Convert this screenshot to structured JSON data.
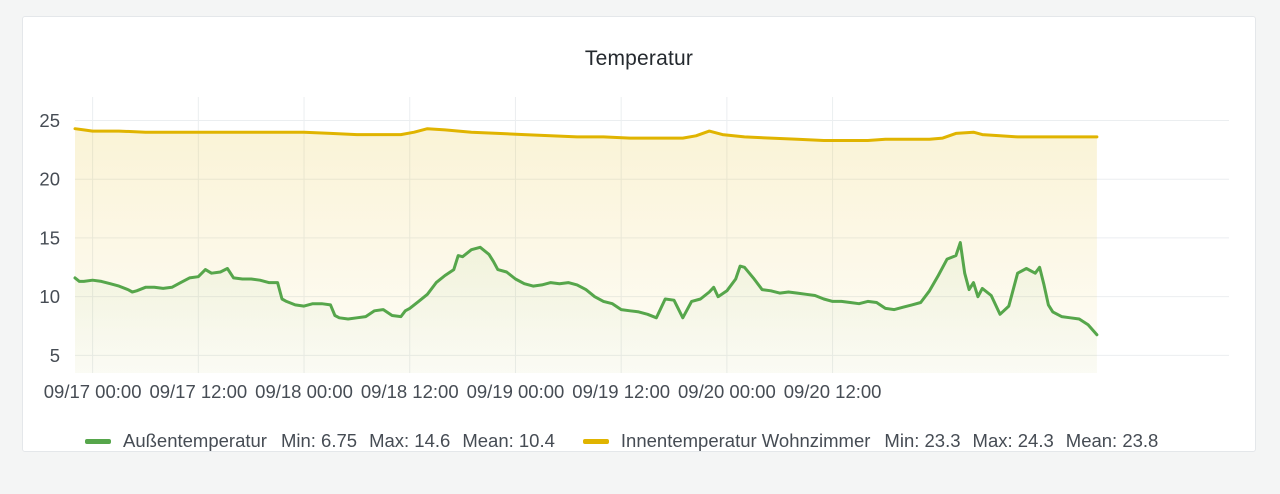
{
  "panel": {
    "title": "Temperatur"
  },
  "chart_data": {
    "type": "line",
    "title": "Temperatur",
    "xlabel": "",
    "ylabel": "",
    "x_unit": "hours since 09/17 00:00",
    "xlim": [
      -2,
      129
    ],
    "ylim": [
      3.5,
      27
    ],
    "x_ticks": [
      {
        "x": 0,
        "label": "09/17 00:00"
      },
      {
        "x": 12,
        "label": "09/17 12:00"
      },
      {
        "x": 24,
        "label": "09/18 00:00"
      },
      {
        "x": 36,
        "label": "09/18 12:00"
      },
      {
        "x": 48,
        "label": "09/19 00:00"
      },
      {
        "x": 60,
        "label": "09/19 12:00"
      },
      {
        "x": 72,
        "label": "09/20 00:00"
      },
      {
        "x": 84,
        "label": "09/20 12:00"
      }
    ],
    "y_ticks": [
      5,
      10,
      15,
      20,
      25
    ],
    "grid": true,
    "legend_position": "bottom",
    "series": [
      {
        "name": "Außentemperatur",
        "color": "#56a64b",
        "min": "6.75",
        "max": "14.6",
        "mean": "10.4",
        "points": [
          [
            -2,
            11.6
          ],
          [
            -1.5,
            11.3
          ],
          [
            -1,
            11.3
          ],
          [
            0,
            11.4
          ],
          [
            1,
            11.3
          ],
          [
            2,
            11.1
          ],
          [
            3,
            10.9
          ],
          [
            4,
            10.6
          ],
          [
            4.5,
            10.4
          ],
          [
            5,
            10.5
          ],
          [
            6,
            10.8
          ],
          [
            7,
            10.8
          ],
          [
            8,
            10.7
          ],
          [
            9,
            10.8
          ],
          [
            10,
            11.2
          ],
          [
            11,
            11.6
          ],
          [
            12,
            11.7
          ],
          [
            12.8,
            12.3
          ],
          [
            13.5,
            12.0
          ],
          [
            14.5,
            12.1
          ],
          [
            15.3,
            12.4
          ],
          [
            16,
            11.6
          ],
          [
            17,
            11.5
          ],
          [
            18,
            11.5
          ],
          [
            19,
            11.4
          ],
          [
            20,
            11.2
          ],
          [
            21,
            11.2
          ],
          [
            21.5,
            9.8
          ],
          [
            22,
            9.6
          ],
          [
            23,
            9.3
          ],
          [
            24,
            9.2
          ],
          [
            25,
            9.4
          ],
          [
            26,
            9.4
          ],
          [
            27,
            9.3
          ],
          [
            27.5,
            8.4
          ],
          [
            28,
            8.2
          ],
          [
            29,
            8.1
          ],
          [
            30,
            8.2
          ],
          [
            31,
            8.3
          ],
          [
            32,
            8.8
          ],
          [
            33,
            8.9
          ],
          [
            34,
            8.4
          ],
          [
            35,
            8.3
          ],
          [
            35.5,
            8.8
          ],
          [
            36,
            9.0
          ],
          [
            37,
            9.6
          ],
          [
            38,
            10.2
          ],
          [
            39,
            11.2
          ],
          [
            40,
            11.8
          ],
          [
            41,
            12.3
          ],
          [
            41.5,
            13.5
          ],
          [
            42,
            13.4
          ],
          [
            43,
            14.0
          ],
          [
            44,
            14.2
          ],
          [
            45,
            13.6
          ],
          [
            45.5,
            13.0
          ],
          [
            46,
            12.3
          ],
          [
            47,
            12.1
          ],
          [
            48,
            11.5
          ],
          [
            49,
            11.1
          ],
          [
            50,
            10.9
          ],
          [
            51,
            11.0
          ],
          [
            52,
            11.2
          ],
          [
            53,
            11.1
          ],
          [
            54,
            11.2
          ],
          [
            55,
            11.0
          ],
          [
            56,
            10.6
          ],
          [
            57,
            10.0
          ],
          [
            58,
            9.6
          ],
          [
            59,
            9.4
          ],
          [
            60,
            8.9
          ],
          [
            61,
            8.8
          ],
          [
            62,
            8.7
          ],
          [
            63,
            8.5
          ],
          [
            64,
            8.2
          ],
          [
            65,
            9.8
          ],
          [
            66,
            9.7
          ],
          [
            67,
            8.2
          ],
          [
            68,
            9.6
          ],
          [
            69,
            9.8
          ],
          [
            70,
            10.4
          ],
          [
            70.5,
            10.8
          ],
          [
            71,
            10.0
          ],
          [
            72,
            10.5
          ],
          [
            73,
            11.5
          ],
          [
            73.5,
            12.6
          ],
          [
            74,
            12.5
          ],
          [
            75,
            11.6
          ],
          [
            76,
            10.6
          ],
          [
            77,
            10.5
          ],
          [
            78,
            10.3
          ],
          [
            79,
            10.4
          ],
          [
            80,
            10.3
          ],
          [
            81,
            10.2
          ],
          [
            82,
            10.1
          ],
          [
            83,
            9.8
          ],
          [
            84,
            9.6
          ],
          [
            85,
            9.6
          ],
          [
            86,
            9.5
          ],
          [
            87,
            9.4
          ],
          [
            88,
            9.6
          ],
          [
            89,
            9.5
          ],
          [
            90,
            9.0
          ],
          [
            91,
            8.9
          ],
          [
            92,
            9.1
          ],
          [
            93,
            9.3
          ],
          [
            94,
            9.5
          ],
          [
            95,
            10.5
          ],
          [
            96,
            11.8
          ],
          [
            97,
            13.2
          ],
          [
            98,
            13.5
          ],
          [
            98.5,
            14.6
          ],
          [
            99,
            12.0
          ],
          [
            99.5,
            10.6
          ],
          [
            100,
            11.2
          ],
          [
            100.5,
            10.0
          ],
          [
            101,
            10.7
          ],
          [
            102,
            10.1
          ],
          [
            103,
            8.5
          ],
          [
            104,
            9.2
          ],
          [
            105,
            12.0
          ],
          [
            106,
            12.4
          ],
          [
            107,
            12.0
          ],
          [
            107.5,
            12.5
          ],
          [
            108,
            11.0
          ],
          [
            108.5,
            9.3
          ],
          [
            109,
            8.7
          ],
          [
            110,
            8.3
          ],
          [
            111,
            8.2
          ],
          [
            112,
            8.1
          ],
          [
            113,
            7.6
          ],
          [
            114,
            6.75
          ]
        ]
      },
      {
        "name": "Innentemperatur Wohnzimmer",
        "color": "#e0b400",
        "min": "23.3",
        "max": "24.3",
        "mean": "23.8",
        "points": [
          [
            -2,
            24.3
          ],
          [
            -1,
            24.2
          ],
          [
            0,
            24.1
          ],
          [
            1,
            24.1
          ],
          [
            3,
            24.1
          ],
          [
            6,
            24.0
          ],
          [
            9,
            24.0
          ],
          [
            12,
            24.0
          ],
          [
            15,
            24.0
          ],
          [
            18,
            24.0
          ],
          [
            21,
            24.0
          ],
          [
            24,
            24.0
          ],
          [
            27,
            23.9
          ],
          [
            30,
            23.8
          ],
          [
            33,
            23.8
          ],
          [
            35,
            23.8
          ],
          [
            36.5,
            24.0
          ],
          [
            38,
            24.3
          ],
          [
            40,
            24.2
          ],
          [
            43,
            24.0
          ],
          [
            46,
            23.9
          ],
          [
            49,
            23.8
          ],
          [
            52,
            23.7
          ],
          [
            55,
            23.6
          ],
          [
            58,
            23.6
          ],
          [
            61,
            23.5
          ],
          [
            64,
            23.5
          ],
          [
            67,
            23.5
          ],
          [
            68.5,
            23.7
          ],
          [
            70,
            24.1
          ],
          [
            71.5,
            23.8
          ],
          [
            74,
            23.6
          ],
          [
            77,
            23.5
          ],
          [
            80,
            23.4
          ],
          [
            83,
            23.3
          ],
          [
            86,
            23.3
          ],
          [
            88,
            23.3
          ],
          [
            90,
            23.4
          ],
          [
            93,
            23.4
          ],
          [
            95,
            23.4
          ],
          [
            96.5,
            23.5
          ],
          [
            98,
            23.9
          ],
          [
            100,
            24.0
          ],
          [
            101,
            23.8
          ],
          [
            103,
            23.7
          ],
          [
            105,
            23.6
          ],
          [
            107,
            23.6
          ],
          [
            109,
            23.6
          ],
          [
            111,
            23.6
          ],
          [
            114,
            23.6
          ]
        ]
      }
    ]
  },
  "legend": [
    {
      "name": "Außentemperatur",
      "min_label": "Min: 6.75",
      "max_label": "Max: 14.6",
      "mean_label": "Mean: 10.4",
      "color": "#56a64b"
    },
    {
      "name": "Innentemperatur Wohnzimmer",
      "min_label": "Min: 23.3",
      "max_label": "Max: 24.3",
      "mean_label": "Mean: 23.8",
      "color": "#e0b400"
    }
  ]
}
